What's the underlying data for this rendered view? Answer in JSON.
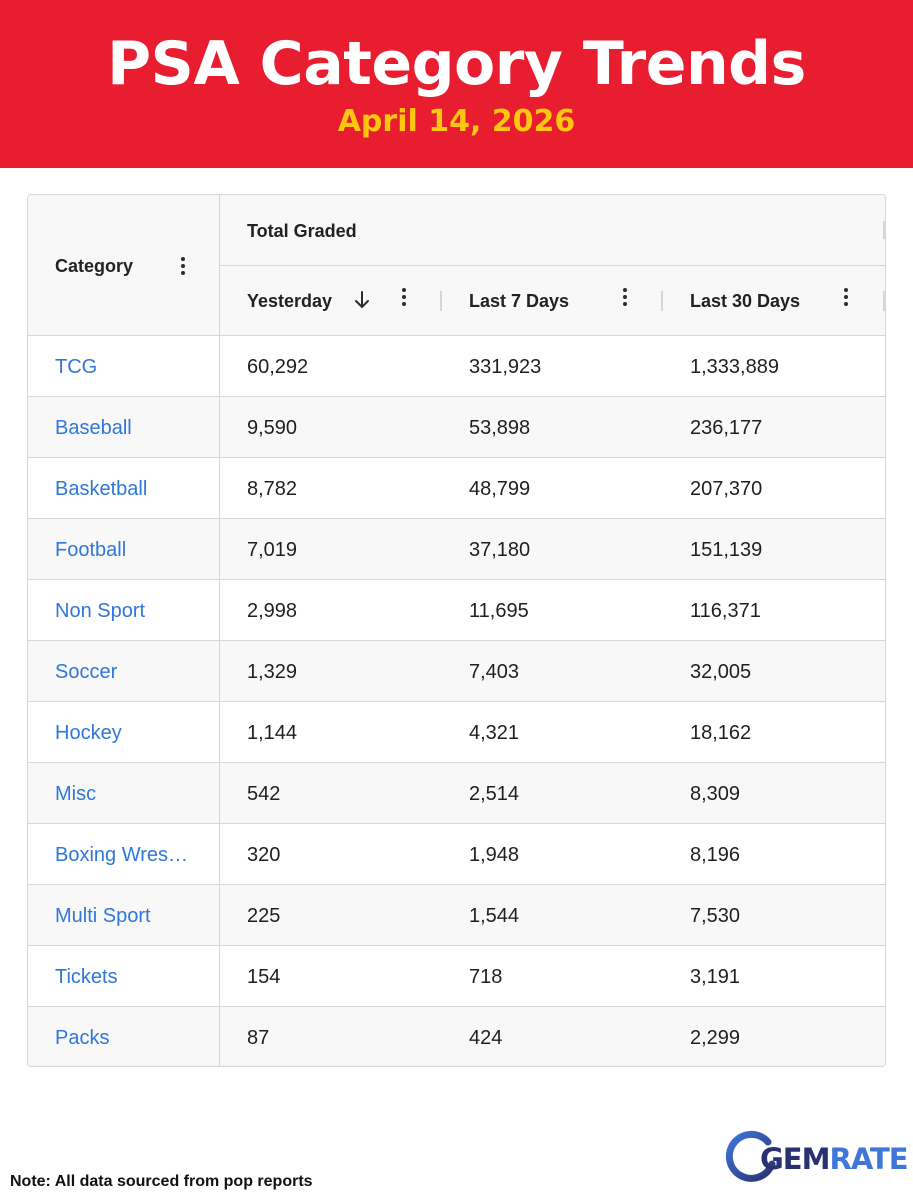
{
  "banner": {
    "title": "PSA Category Trends",
    "date": "April 14, 2026",
    "background_color": "#e81d30",
    "date_color": "#fcc80f"
  },
  "table": {
    "category_header": "Category",
    "group_header": "Total Graded",
    "columns": [
      {
        "label": "Yesterday",
        "sorted": "descending"
      },
      {
        "label": "Last 7 Days"
      },
      {
        "label": "Last 30 Days"
      }
    ],
    "link_color": "#2f77d9",
    "rows": [
      {
        "category": "TCG",
        "yesterday": "60,292",
        "last_7_days": "331,923",
        "last_30_days": "1,333,889"
      },
      {
        "category": "Baseball",
        "yesterday": "9,590",
        "last_7_days": "53,898",
        "last_30_days": "236,177"
      },
      {
        "category": "Basketball",
        "yesterday": "8,782",
        "last_7_days": "48,799",
        "last_30_days": "207,370"
      },
      {
        "category": "Football",
        "yesterday": "7,019",
        "last_7_days": "37,180",
        "last_30_days": "151,139"
      },
      {
        "category": "Non Sport",
        "yesterday": "2,998",
        "last_7_days": "11,695",
        "last_30_days": "116,371"
      },
      {
        "category": "Soccer",
        "yesterday": "1,329",
        "last_7_days": "7,403",
        "last_30_days": "32,005"
      },
      {
        "category": "Hockey",
        "yesterday": "1,144",
        "last_7_days": "4,321",
        "last_30_days": "18,162"
      },
      {
        "category": "Misc",
        "yesterday": "542",
        "last_7_days": "2,514",
        "last_30_days": "8,309"
      },
      {
        "category": "Boxing Wres…",
        "yesterday": "320",
        "last_7_days": "1,948",
        "last_30_days": "8,196"
      },
      {
        "category": "Multi Sport",
        "yesterday": "225",
        "last_7_days": "1,544",
        "last_30_days": "7,530"
      },
      {
        "category": "Tickets",
        "yesterday": "154",
        "last_7_days": "718",
        "last_30_days": "3,191"
      },
      {
        "category": "Packs",
        "yesterday": "87",
        "last_7_days": "424",
        "last_30_days": "2,299"
      }
    ]
  },
  "footer": {
    "note": "Note: All data sourced from pop reports",
    "logo": {
      "part1": "GEM",
      "part2": "RATE",
      "color1": "#2a3170",
      "color2": "#3f76d9"
    }
  }
}
